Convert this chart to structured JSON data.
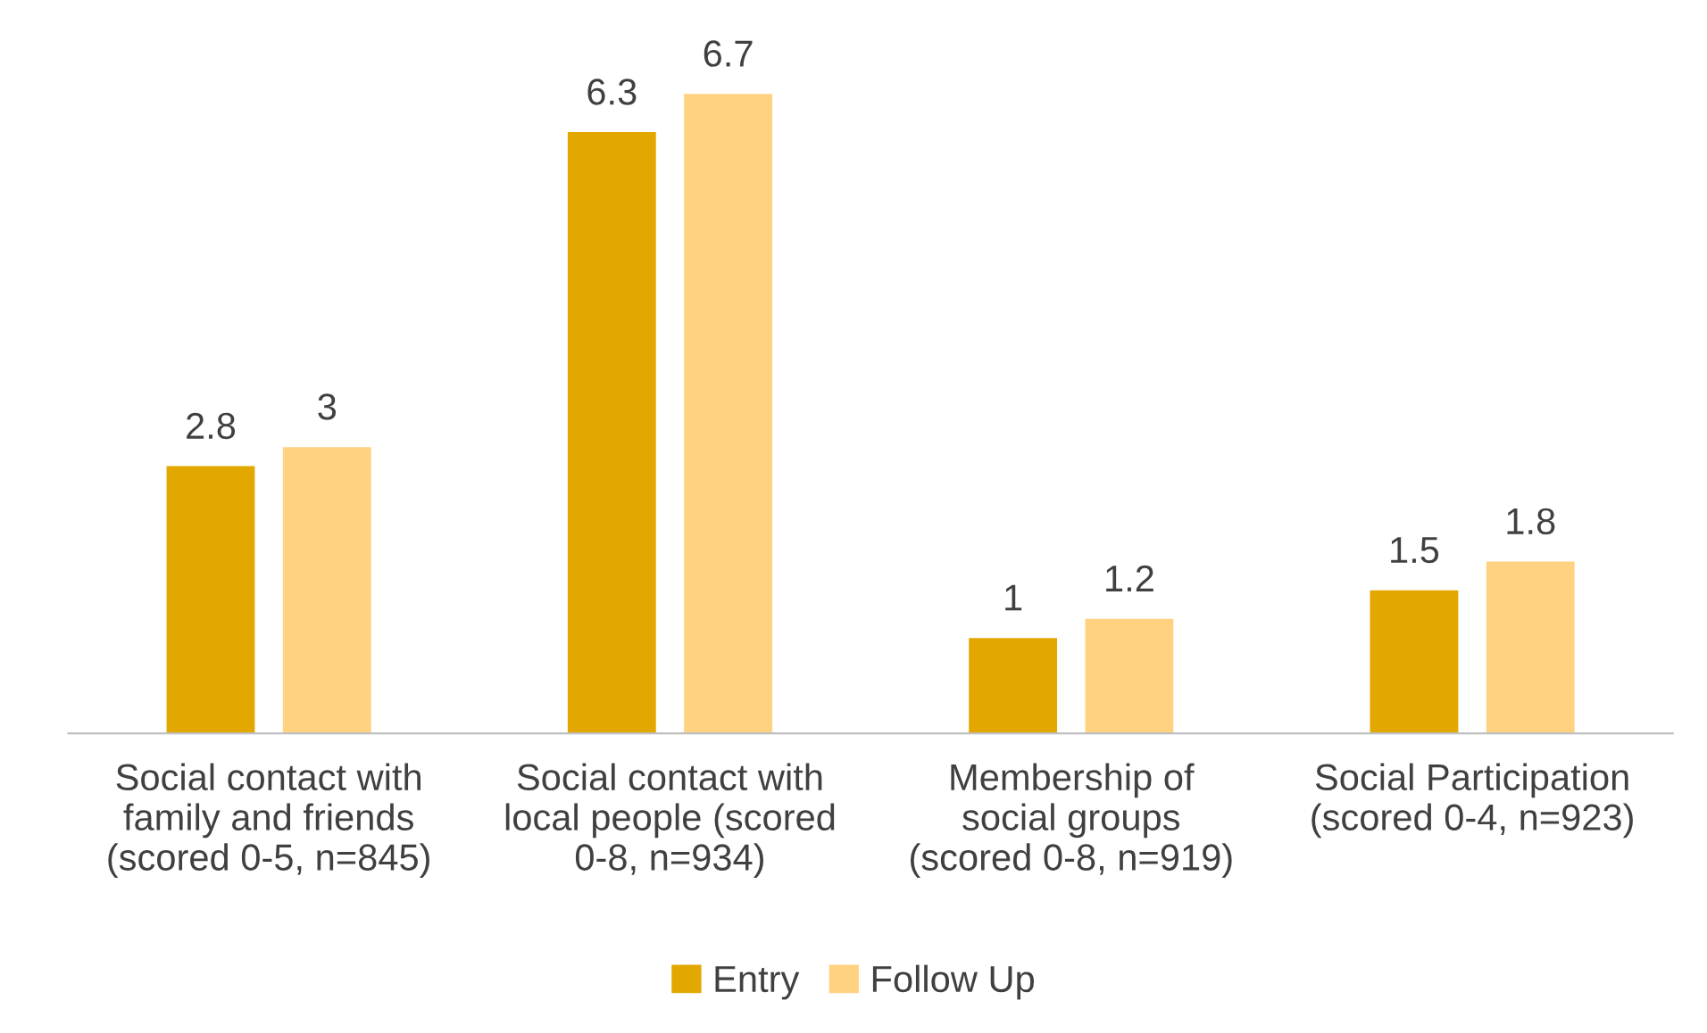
{
  "chart_data": {
    "type": "bar",
    "categories": [
      "Social contact with\nfamily and friends\n(scored 0-5, n=845)",
      "Social contact with\nlocal people (scored\n0-8, n=934)",
      "Membership of\nsocial groups\n(scored 0-8, n=919)",
      "Social Participation\n(scored 0-4, n=923)"
    ],
    "series": [
      {
        "name": "Entry",
        "color": "#e2a800",
        "values": [
          2.8,
          6.3,
          1,
          1.5
        ]
      },
      {
        "name": "Follow Up",
        "color": "#ffd282",
        "values": [
          3,
          6.7,
          1.2,
          1.8
        ]
      }
    ],
    "data_labels": true,
    "legend": "bottom",
    "grid": false,
    "tick_labels": "x"
  }
}
